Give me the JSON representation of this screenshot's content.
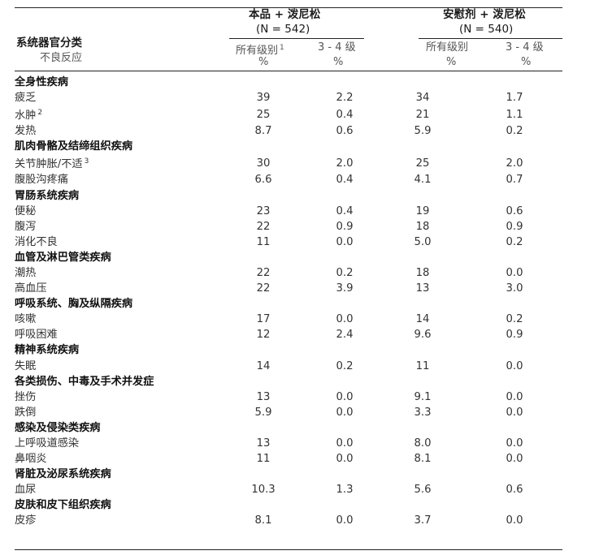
{
  "top_cut_text": "",
  "header": {
    "group1": {
      "title": "本品 + 泼尼松",
      "n": "(N = 542)",
      "all_grades": "所有级别",
      "all_grades_sup": "1",
      "grade34": "3 - 4 级",
      "unit1": "%",
      "unit2": "%"
    },
    "group2": {
      "title": "安慰剂 + 泼尼松",
      "n": "(N = 540)",
      "all_grades": "所有级别",
      "grade34": "3 - 4 级",
      "unit1": "%",
      "unit2": "%"
    },
    "soc_label": "系统器官分类",
    "ae_label": "不良反应"
  },
  "rows": [
    {
      "type": "cat",
      "label": "全身性疾病"
    },
    {
      "type": "item",
      "label": "疲乏",
      "v": [
        "39",
        "2.2",
        "34",
        "1.7"
      ]
    },
    {
      "type": "item",
      "label": "水肿",
      "sup": "2",
      "v": [
        "25",
        "0.4",
        "21",
        "1.1"
      ]
    },
    {
      "type": "item",
      "label": "发热",
      "v": [
        "8.7",
        "0.6",
        "5.9",
        "0.2"
      ]
    },
    {
      "type": "cat",
      "label": "肌肉骨骼及结缔组织疾病"
    },
    {
      "type": "item",
      "label": "关节肿胀/不适",
      "sup": "3",
      "v": [
        "30",
        "2.0",
        "25",
        "2.0"
      ]
    },
    {
      "type": "item",
      "label": "腹股沟疼痛",
      "v": [
        "6.6",
        "0.4",
        "4.1",
        "0.7"
      ]
    },
    {
      "type": "cat",
      "label": "胃肠系统疾病"
    },
    {
      "type": "item",
      "label": "便秘",
      "v": [
        "23",
        "0.4",
        "19",
        "0.6"
      ]
    },
    {
      "type": "item",
      "label": "腹泻",
      "v": [
        "22",
        "0.9",
        "18",
        "0.9"
      ]
    },
    {
      "type": "item",
      "label": "消化不良",
      "v": [
        "11",
        "0.0",
        "5.0",
        "0.2"
      ]
    },
    {
      "type": "cat",
      "label": "血管及淋巴管类疾病"
    },
    {
      "type": "item",
      "label": "潮热",
      "v": [
        "22",
        "0.2",
        "18",
        "0.0"
      ]
    },
    {
      "type": "item",
      "label": "高血压",
      "v": [
        "22",
        "3.9",
        "13",
        "3.0"
      ]
    },
    {
      "type": "cat",
      "label": "呼吸系统、胸及纵隔疾病"
    },
    {
      "type": "item",
      "label": "咳嗽",
      "v": [
        "17",
        "0.0",
        "14",
        "0.2"
      ]
    },
    {
      "type": "item",
      "label": "呼吸困难",
      "v": [
        "12",
        "2.4",
        "9.6",
        "0.9"
      ]
    },
    {
      "type": "cat",
      "label": "精神系统疾病"
    },
    {
      "type": "item",
      "label": "失眠",
      "v": [
        "14",
        "0.2",
        "11",
        "0.0"
      ]
    },
    {
      "type": "cat",
      "label": "各类损伤、中毒及手术并发症"
    },
    {
      "type": "item",
      "label": "挫伤",
      "v": [
        "13",
        "0.0",
        "9.1",
        "0.0"
      ]
    },
    {
      "type": "item",
      "label": "跌倒",
      "v": [
        "5.9",
        "0.0",
        "3.3",
        "0.0"
      ]
    },
    {
      "type": "cat",
      "label": "感染及侵染类疾病"
    },
    {
      "type": "item",
      "label": "上呼吸道感染",
      "v": [
        "13",
        "0.0",
        "8.0",
        "0.0"
      ]
    },
    {
      "type": "item",
      "label": "鼻咽炎",
      "v": [
        "11",
        "0.0",
        "8.1",
        "0.0"
      ]
    },
    {
      "type": "cat",
      "label": "肾脏及泌尿系统疾病"
    },
    {
      "type": "item",
      "label": "血尿",
      "v": [
        "10.3",
        "1.3",
        "5.6",
        "0.6"
      ]
    },
    {
      "type": "cat",
      "label": "皮肤和皮下组织疾病"
    },
    {
      "type": "item",
      "label": "皮疹",
      "v": [
        "8.1",
        "0.0",
        "3.7",
        "0.0"
      ]
    }
  ],
  "footnote": ""
}
